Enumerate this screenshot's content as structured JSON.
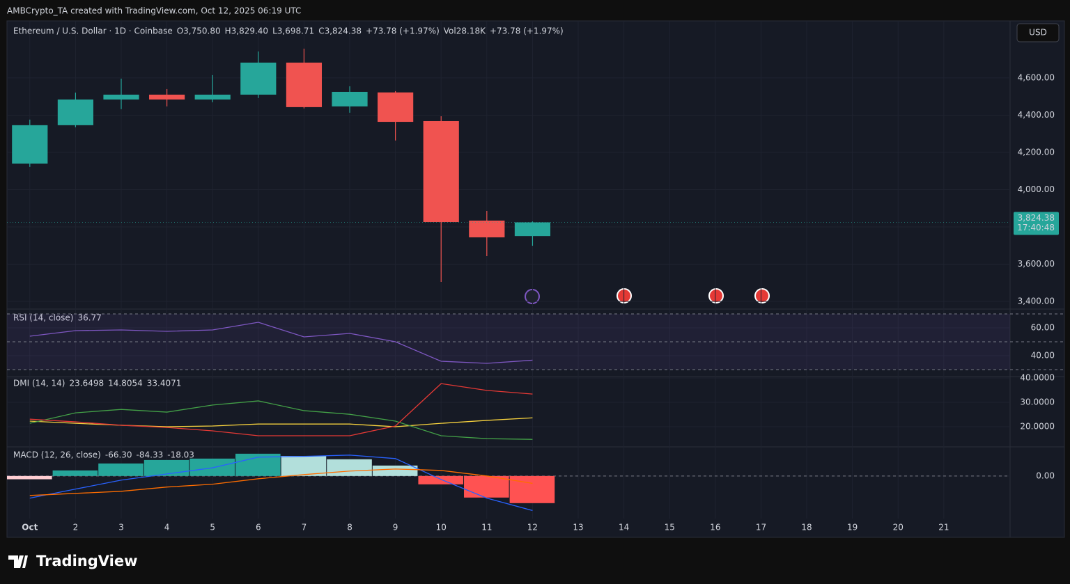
{
  "header": "AMBCrypto_TA created with TradingView.com, Oct 12, 2025 06:19 UTC",
  "footer": "TradingView",
  "chart_data": [
    {
      "type": "candlestick",
      "title": "Ethereum / U.S. Dollar · 1D · Coinbase",
      "legend": [
        "O3,750.80",
        "H3,829.40",
        "L3,698.71",
        "C3,824.38",
        "+73.78 (+1.97%)",
        "Vol28.18K",
        "+73.78 (+1.97%)"
      ],
      "currency": "USD",
      "last_price_label": "3,824.38",
      "countdown": "17:40:48",
      "up_color": "#26a69a",
      "down_color": "#f05350",
      "x": [
        1,
        2,
        3,
        4,
        5,
        6,
        7,
        8,
        9,
        10,
        11,
        12
      ],
      "open": [
        4140,
        4346,
        4484,
        4510,
        4484,
        4510,
        4682,
        4447,
        4522,
        4368,
        3834,
        3750.8
      ],
      "high": [
        4376,
        4521,
        4596,
        4540,
        4615,
        4742,
        4757,
        4555,
        4529,
        4394,
        3886,
        3829.4
      ],
      "low": [
        4122,
        4335,
        4432,
        4447,
        4469,
        4492,
        4436,
        4413,
        4264,
        3505,
        3643,
        3698.71
      ],
      "close": [
        4346,
        4484,
        4510,
        4484,
        4510,
        4682,
        4443,
        4525,
        4364,
        3826,
        3744,
        3824.38
      ],
      "ylim": [
        3374,
        4906
      ],
      "yticks": [
        {
          "value": 3400,
          "label": "3,400.00"
        },
        {
          "value": 3600,
          "label": "3,600.00"
        },
        {
          "value": 3800,
          "label": "3,800.00"
        },
        {
          "value": 4000,
          "label": "4,000.00"
        },
        {
          "value": 4200,
          "label": "4,200.00"
        },
        {
          "value": 4400,
          "label": "4,400.00"
        },
        {
          "value": 4600,
          "label": "4,600.00"
        }
      ]
    },
    {
      "type": "line",
      "title": "RSI (14, close)",
      "legend_values": [
        "36.77"
      ],
      "x": [
        1,
        2,
        3,
        4,
        5,
        6,
        7,
        8,
        9,
        10,
        11,
        12
      ],
      "series": [
        {
          "color": "#7e57c2",
          "values": [
            54,
            58,
            58.5,
            57.5,
            58.5,
            64,
            53.5,
            56,
            50,
            36,
            34.5,
            36.77
          ]
        }
      ],
      "levels": [
        70,
        50,
        30
      ],
      "band_color": "#7e57c2",
      "ylim": [
        26.5,
        71.5
      ],
      "yticks": [
        {
          "value": 40,
          "label": "40.00"
        },
        {
          "value": 60,
          "label": "60.00"
        }
      ]
    },
    {
      "type": "line",
      "title": "DMI (14, 14)",
      "legend_values": [
        "23.6498",
        "14.8054",
        "33.4071"
      ],
      "x": [
        1,
        2,
        3,
        4,
        5,
        6,
        7,
        8,
        9,
        10,
        11,
        12
      ],
      "series": [
        {
          "color": "#f7d23e",
          "values": [
            22.3,
            21.4,
            20.6,
            20,
            20.3,
            21.1,
            21.1,
            21.1,
            20,
            21.4,
            22.6,
            23.6498
          ]
        },
        {
          "color": "#43a047",
          "values": [
            21.4,
            25.7,
            27.1,
            26,
            28.9,
            30.6,
            26.6,
            25.1,
            22.3,
            16.3,
            15.1,
            14.8054
          ]
        },
        {
          "color": "#e53935",
          "values": [
            23.1,
            22,
            20.6,
            19.7,
            18.3,
            16.3,
            16.3,
            16.3,
            20.3,
            37.7,
            34.9,
            33.4071
          ]
        }
      ],
      "ylim": [
        12.3,
        40.3
      ],
      "yticks": [
        {
          "value": 20,
          "label": "20.0000"
        },
        {
          "value": 30,
          "label": "30.0000"
        },
        {
          "value": 40,
          "label": "40.0000"
        }
      ]
    },
    {
      "type": "combo",
      "title": "MACD (12, 26, close)",
      "legend_values": [
        "-66.30",
        "-84.33",
        "-18.03"
      ],
      "legend_colors": [
        "#f23645",
        "#2962ff",
        "#ff6d00"
      ],
      "x": [
        1,
        2,
        3,
        4,
        5,
        6,
        7,
        8,
        9,
        10,
        11,
        12
      ],
      "histogram": {
        "values": [
          -8,
          13.6,
          30.6,
          39,
          42.5,
          54.4,
          49,
          40.8,
          25.5,
          -20.4,
          -52.7,
          -66.3
        ],
        "colors": [
          "#ffcdd2",
          "#26a69a",
          "#26a69a",
          "#26a69a",
          "#26a69a",
          "#26a69a",
          "#b2dfdb",
          "#b2dfdb",
          "#b2dfdb",
          "#ff5252",
          "#ff5252",
          "#ff5252"
        ]
      },
      "series": [
        {
          "color": "#2962ff",
          "values": [
            -54,
            -32,
            -10,
            5,
            20,
            46,
            48,
            51,
            42.5,
            -8.5,
            -54,
            -84.33
          ]
        },
        {
          "color": "#ff6d00",
          "values": [
            -47.6,
            -42.5,
            -37.4,
            -27,
            -20,
            -6.8,
            3.4,
            12,
            17,
            13.6,
            0,
            -18.03
          ]
        }
      ],
      "ylim": [
        -104,
        66
      ],
      "yticks": [
        {
          "value": 0,
          "label": "0.00"
        }
      ],
      "xlim": [
        0.5,
        22.45
      ],
      "xticks": [
        {
          "value": 1,
          "label": "Oct"
        },
        2,
        3,
        4,
        5,
        6,
        7,
        8,
        9,
        10,
        11,
        12,
        13,
        14,
        15,
        16,
        17,
        18,
        19,
        20,
        21
      ]
    }
  ]
}
